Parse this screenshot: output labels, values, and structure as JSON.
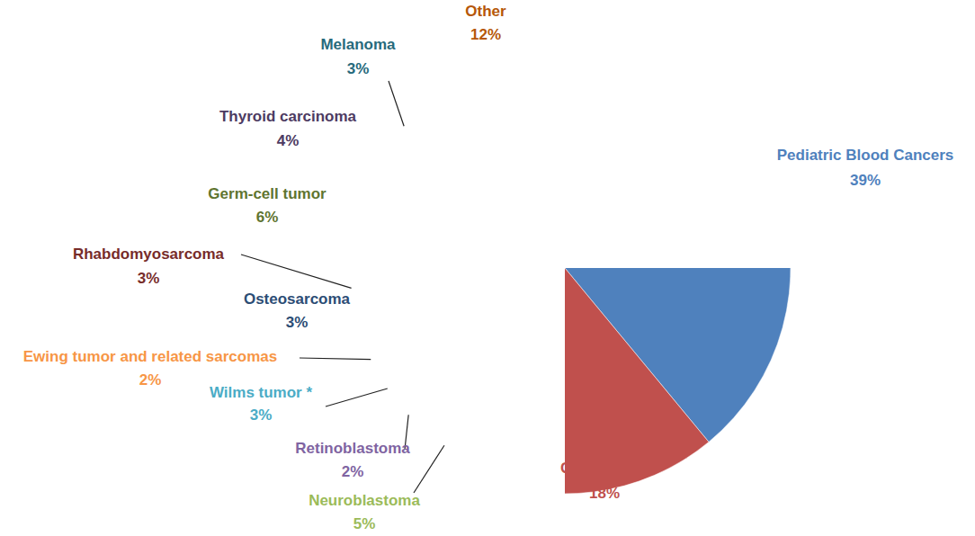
{
  "chart_data": {
    "type": "pie",
    "categories": [
      "Pediatric Blood Cancers",
      "CNS tumors",
      "Neuroblastoma",
      "Retinoblastoma",
      "Wilms tumor *",
      "Ewing tumor and related sarcomas",
      "Osteosarcoma",
      "Rhabdomyosarcoma",
      "Germ-cell tumor",
      "Thyroid carcinoma",
      "Melanoma",
      "Other"
    ],
    "values": [
      39,
      18,
      5,
      2,
      3,
      2,
      3,
      3,
      6,
      4,
      3,
      12
    ],
    "value_labels": [
      "39%",
      "18%",
      "5%",
      "2%",
      "3%",
      "2%",
      "3%",
      "3%",
      "6%",
      "4%",
      "3%",
      "12%"
    ],
    "colors": [
      "#4f81bd",
      "#c0504d",
      "#9bbb59",
      "#8064a2",
      "#4bacc6",
      "#f79646",
      "#2c4d75",
      "#772c2a",
      "#5f7530",
      "#4d3b62",
      "#276a7c",
      "#b65708"
    ],
    "data_labels": true
  }
}
